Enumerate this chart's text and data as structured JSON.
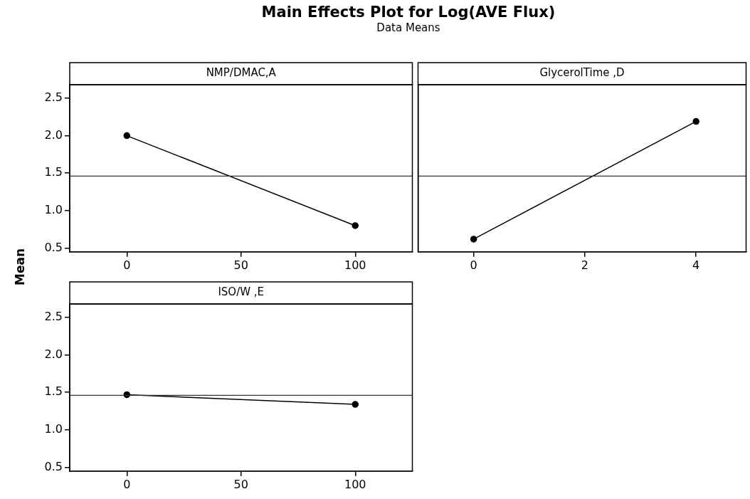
{
  "chart_data": [
    {
      "type": "line",
      "title": "NMP/DMAC,A",
      "annotations": [
        "Main Effects Plot for Log(AVE Flux)",
        "Data Means"
      ],
      "ylabel": "Mean",
      "x": [
        0,
        100
      ],
      "series": [
        {
          "color": "#000000",
          "values": [
            2.0,
            0.8
          ]
        }
      ],
      "xlim": [
        -25,
        125
      ],
      "xticks": [
        0,
        50,
        100
      ],
      "ylim": [
        0.45,
        2.68
      ],
      "yticks": [
        {
          "value": 0.5,
          "label": "0.5"
        },
        {
          "value": 1,
          "label": "1.0"
        },
        {
          "value": 1.5,
          "label": "1.5"
        },
        {
          "value": 2,
          "label": "2.0"
        },
        {
          "value": 2.5,
          "label": "2.5"
        }
      ],
      "ref_lines": [
        {
          "axis": "y",
          "value": 1.46,
          "color": "#333333"
        }
      ],
      "marker": "circle"
    },
    {
      "type": "line",
      "title": "GlycerolTime ,D",
      "x": [
        0,
        4
      ],
      "series": [
        {
          "color": "#000000",
          "values": [
            0.62,
            2.19
          ]
        }
      ],
      "xlim": [
        -1,
        4.9
      ],
      "xticks": [
        0,
        2,
        4
      ],
      "ylim": [
        0.45,
        2.68
      ],
      "tick_labels": "x",
      "ref_lines": [
        {
          "axis": "y",
          "value": 1.46,
          "color": "#333333"
        }
      ],
      "marker": "circle"
    },
    {
      "type": "line",
      "title": "ISO/W ,E",
      "x": [
        0,
        100
      ],
      "series": [
        {
          "color": "#000000",
          "values": [
            1.47,
            1.34
          ]
        }
      ],
      "xlim": [
        -25,
        125
      ],
      "xticks": [
        0,
        50,
        100
      ],
      "ylim": [
        0.45,
        2.68
      ],
      "yticks": [
        {
          "value": 0.5,
          "label": "0.5"
        },
        {
          "value": 1,
          "label": "1.0"
        },
        {
          "value": 1.5,
          "label": "1.5"
        },
        {
          "value": 2,
          "label": "2.0"
        },
        {
          "value": 2.5,
          "label": "2.5"
        }
      ],
      "ref_lines": [
        {
          "axis": "y",
          "value": 1.46,
          "color": "#333333"
        }
      ],
      "marker": "circle"
    }
  ]
}
